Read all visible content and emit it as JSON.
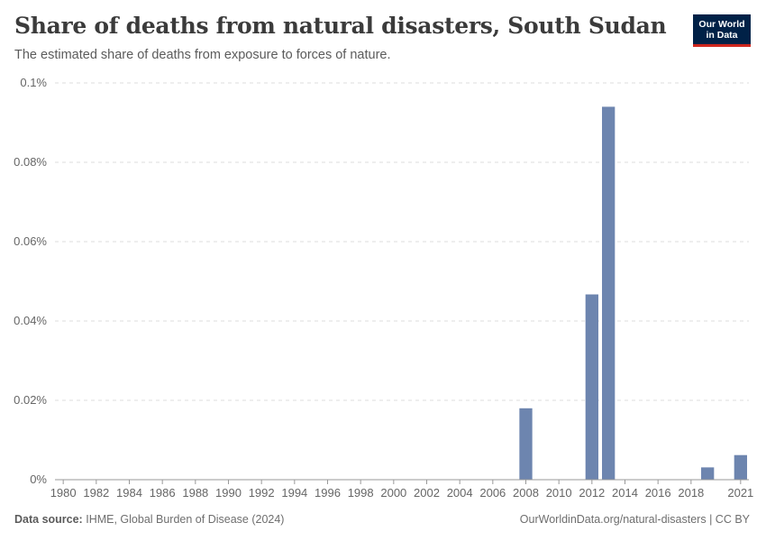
{
  "header": {
    "title": "Share of deaths from natural disasters, South Sudan",
    "subtitle": "The estimated share of deaths from exposure to forces of nature."
  },
  "logo": {
    "line1": "Our World",
    "line2": "in Data"
  },
  "footer": {
    "source_label": "Data source:",
    "source_text": "IHME, Global Burden of Disease (2024)",
    "url_text": "OurWorldinData.org/natural-disasters | CC BY"
  },
  "colors": {
    "bar": "#6d85af",
    "grid": "#dddddd",
    "axis": "#999999"
  },
  "chart_data": {
    "type": "bar",
    "title": "Share of deaths from natural disasters, South Sudan",
    "xlabel": "",
    "ylabel": "",
    "x_range": [
      1980,
      2021
    ],
    "ylim": [
      0,
      0.1
    ],
    "y_ticks": [
      0,
      0.02,
      0.04,
      0.06,
      0.08,
      0.1
    ],
    "y_tick_labels": [
      "0%",
      "0.02%",
      "0.04%",
      "0.06%",
      "0.08%",
      "0.1%"
    ],
    "x_ticks": [
      1980,
      1982,
      1984,
      1986,
      1988,
      1990,
      1992,
      1994,
      1996,
      1998,
      2000,
      2002,
      2004,
      2006,
      2008,
      2010,
      2012,
      2014,
      2016,
      2018,
      2021
    ],
    "unit": "%",
    "series": [
      {
        "name": "Share of deaths from natural disasters",
        "points": [
          {
            "year": 2008,
            "value": 0.018
          },
          {
            "year": 2012,
            "value": 0.0467
          },
          {
            "year": 2013,
            "value": 0.094
          },
          {
            "year": 2019,
            "value": 0.0031
          },
          {
            "year": 2021,
            "value": 0.0062
          }
        ]
      }
    ],
    "grid": true
  }
}
